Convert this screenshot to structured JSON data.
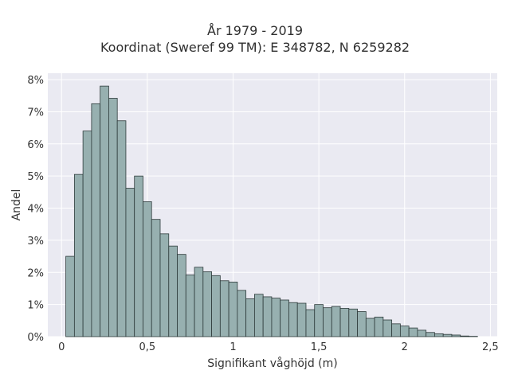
{
  "chart_data": {
    "type": "bar",
    "title": "År 1979 - 2019",
    "subtitle": "Koordinat (Sweref 99 TM): E 348782, N 6259282",
    "xlabel": "Signifikant våghöjd (m)",
    "ylabel": "Andel",
    "bin_width": 0.05,
    "x_start": 0.025,
    "xlim": [
      -0.08,
      2.54
    ],
    "ylim": [
      0,
      8.2
    ],
    "x_ticks": [
      0,
      0.5,
      1,
      1.5,
      2,
      2.5
    ],
    "x_tick_labels": [
      "0",
      "0,5",
      "1",
      "1,5",
      "2",
      "2,5"
    ],
    "y_ticks": [
      0,
      1,
      2,
      3,
      4,
      5,
      6,
      7,
      8
    ],
    "y_tick_labels": [
      "0%",
      "1%",
      "2%",
      "3%",
      "4%",
      "5%",
      "6%",
      "7%",
      "8%"
    ],
    "values": [
      2.5,
      5.05,
      6.4,
      7.25,
      7.8,
      7.42,
      6.72,
      4.62,
      5.0,
      4.2,
      3.65,
      3.2,
      2.82,
      2.56,
      1.92,
      2.16,
      2.02,
      1.9,
      1.74,
      1.7,
      1.44,
      1.18,
      1.32,
      1.24,
      1.2,
      1.14,
      1.06,
      1.04,
      0.84,
      1.0,
      0.9,
      0.94,
      0.88,
      0.86,
      0.78,
      0.57,
      0.61,
      0.52,
      0.4,
      0.33,
      0.27,
      0.2,
      0.13,
      0.09,
      0.07,
      0.05,
      0.02,
      0.01
    ],
    "grid": true,
    "colors": {
      "bar_fill": "#97b0b0",
      "bar_edge": "#2e3b3b",
      "plot_bg": "#eaeaf2",
      "grid": "#ffffff"
    }
  }
}
